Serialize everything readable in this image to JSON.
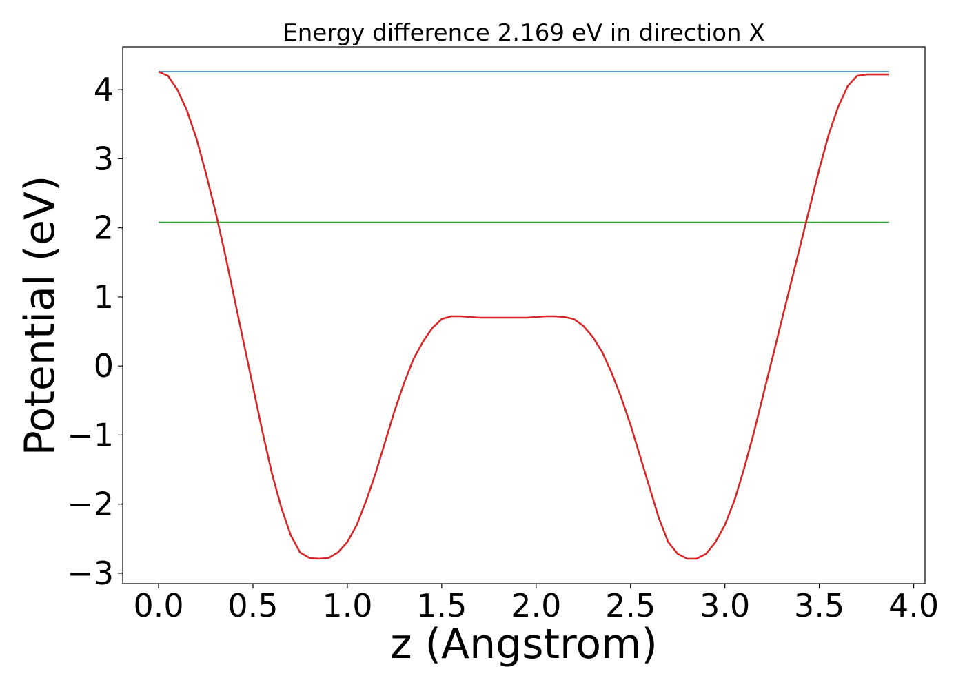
{
  "chart_data": {
    "type": "line",
    "title": "Energy difference 2.169 eV in direction X",
    "xlabel": "z (Angstrom)",
    "ylabel": "Potential (eV)",
    "xlim": [
      -0.19,
      4.06
    ],
    "ylim": [
      -3.15,
      4.62
    ],
    "xticks": [
      0.0,
      0.5,
      1.0,
      1.5,
      2.0,
      2.5,
      3.0,
      3.5,
      4.0
    ],
    "xtick_labels": [
      "0.0",
      "0.5",
      "1.0",
      "1.5",
      "2.0",
      "2.5",
      "3.0",
      "3.5",
      "4.0"
    ],
    "yticks": [
      -3,
      -2,
      -1,
      0,
      1,
      2,
      3,
      4
    ],
    "ytick_labels": [
      "−3",
      "−2",
      "−1",
      "0",
      "1",
      "2",
      "3",
      "4"
    ],
    "grid": false,
    "series": [
      {
        "color": "#1f77b4",
        "x": [
          0.0,
          3.87
        ],
        "y": [
          4.26,
          4.26
        ]
      },
      {
        "color": "#2ca02c",
        "x": [
          0.0,
          3.87
        ],
        "y": [
          2.08,
          2.08
        ]
      },
      {
        "color": "#d62728",
        "x": [
          0.0,
          0.05,
          0.1,
          0.15,
          0.2,
          0.25,
          0.3,
          0.35,
          0.4,
          0.45,
          0.5,
          0.55,
          0.6,
          0.65,
          0.7,
          0.75,
          0.8,
          0.85,
          0.9,
          0.95,
          1.0,
          1.05,
          1.1,
          1.15,
          1.2,
          1.25,
          1.3,
          1.35,
          1.4,
          1.45,
          1.5,
          1.55,
          1.6,
          1.65,
          1.7,
          1.75,
          1.8,
          1.85,
          1.9,
          1.95,
          2.0,
          2.05,
          2.1,
          2.15,
          2.2,
          2.25,
          2.3,
          2.35,
          2.4,
          2.45,
          2.5,
          2.55,
          2.6,
          2.65,
          2.7,
          2.75,
          2.8,
          2.85,
          2.9,
          2.95,
          3.0,
          3.05,
          3.1,
          3.15,
          3.2,
          3.25,
          3.3,
          3.35,
          3.4,
          3.45,
          3.5,
          3.55,
          3.6,
          3.65,
          3.7,
          3.75,
          3.8,
          3.85,
          3.87
        ],
        "y": [
          4.26,
          4.2,
          4.0,
          3.7,
          3.3,
          2.8,
          2.25,
          1.65,
          1.0,
          0.35,
          -0.3,
          -0.95,
          -1.55,
          -2.05,
          -2.45,
          -2.7,
          -2.78,
          -2.79,
          -2.78,
          -2.7,
          -2.55,
          -2.3,
          -1.95,
          -1.55,
          -1.1,
          -0.65,
          -0.25,
          0.1,
          0.35,
          0.55,
          0.68,
          0.72,
          0.72,
          0.71,
          0.7,
          0.7,
          0.7,
          0.7,
          0.7,
          0.7,
          0.71,
          0.72,
          0.72,
          0.71,
          0.68,
          0.58,
          0.42,
          0.2,
          -0.1,
          -0.45,
          -0.85,
          -1.3,
          -1.75,
          -2.2,
          -2.55,
          -2.72,
          -2.79,
          -2.79,
          -2.72,
          -2.55,
          -2.3,
          -1.95,
          -1.5,
          -1.0,
          -0.45,
          0.1,
          0.65,
          1.2,
          1.75,
          2.3,
          2.85,
          3.35,
          3.75,
          4.05,
          4.2,
          4.22,
          4.22,
          4.22,
          4.22
        ]
      }
    ]
  }
}
